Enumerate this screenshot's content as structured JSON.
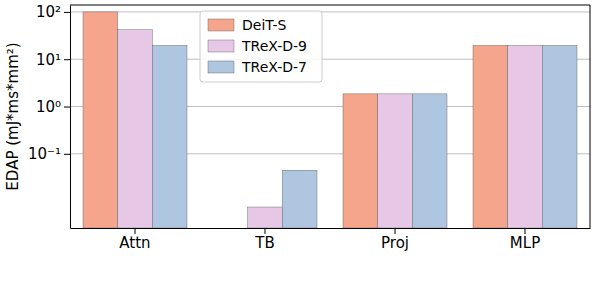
{
  "chart_data": {
    "type": "bar",
    "y_label": "EDAP (mJ*ms*mm²)",
    "categories": [
      "Attn",
      "TB",
      "Proj",
      "MLP"
    ],
    "series": [
      {
        "name": "DeiT-S",
        "color": "#f4a58c",
        "values": [
          100,
          null,
          1.85,
          19.5
        ]
      },
      {
        "name": "TReX-D-9",
        "color": "#e6c8e6",
        "values": [
          42,
          0.0075,
          1.85,
          19.5
        ]
      },
      {
        "name": "TReX-D-7",
        "color": "#aec6e0",
        "values": [
          19.5,
          0.045,
          1.85,
          19.5
        ]
      }
    ],
    "log": "y",
    "ylim": [
      0.0027,
      140
    ],
    "yticks": [
      {
        "value": 0.1,
        "label": "10⁻¹"
      },
      {
        "value": 1,
        "label": "10⁰"
      },
      {
        "value": 10,
        "label": "10¹"
      },
      {
        "value": 100,
        "label": "10²"
      }
    ],
    "grid": true,
    "legend": "upper center"
  }
}
